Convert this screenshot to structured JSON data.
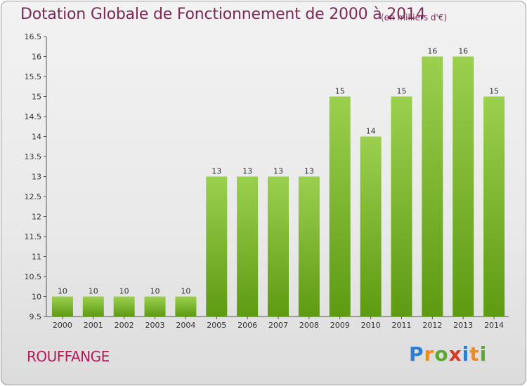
{
  "header": {
    "title": "Dotation Globale de Fonctionnement de 2000 à 2014",
    "unit": "(en milliers d'€)"
  },
  "footer": {
    "town": "ROUFFANGE",
    "logo": "Proxiti"
  },
  "colors": {
    "bar_light": "#9bd04f",
    "bar_dark": "#5e9a12",
    "title": "#7a2a55",
    "town": "#b8195a"
  },
  "chart_data": {
    "type": "bar",
    "title": "Dotation Globale de Fonctionnement de 2000 à 2014",
    "subtitle": "(en milliers d'€)",
    "categories": [
      "2000",
      "2001",
      "2002",
      "2003",
      "2004",
      "2005",
      "2006",
      "2007",
      "2008",
      "2009",
      "2010",
      "2011",
      "2012",
      "2013",
      "2014"
    ],
    "values": [
      10,
      10,
      10,
      10,
      10,
      13,
      13,
      13,
      13,
      15,
      14,
      15,
      16,
      16,
      15
    ],
    "data_labels": [
      "10",
      "10",
      "10",
      "10",
      "10",
      "13",
      "13",
      "13",
      "13",
      "15",
      "14",
      "15",
      "16",
      "16",
      "15"
    ],
    "ylim": [
      9.5,
      16.5
    ],
    "yticks": [
      "9.5",
      "10",
      "10.5",
      "11",
      "11.5",
      "12",
      "12.5",
      "13",
      "13.5",
      "14",
      "14.5",
      "15",
      "15.5",
      "16",
      "16.5"
    ],
    "grid": false,
    "legend": "none"
  }
}
